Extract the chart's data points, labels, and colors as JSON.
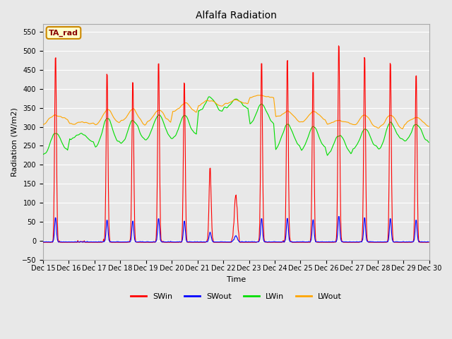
{
  "title": "Alfalfa Radiation",
  "xlabel": "Time",
  "ylabel": "Radiation (W/m2)",
  "ylim": [
    -50,
    570
  ],
  "yticks": [
    -50,
    0,
    50,
    100,
    150,
    200,
    250,
    300,
    350,
    400,
    450,
    500,
    550
  ],
  "series_colors": {
    "SWin": "#ff0000",
    "SWout": "#0000ff",
    "LWin": "#00dd00",
    "LWout": "#ffa500"
  },
  "legend_labels": [
    "SWin",
    "SWout",
    "LWin",
    "LWout"
  ],
  "annotation_label": "TA_rad",
  "annotation_color_bg": "#ffffcc",
  "annotation_color_border": "#cc8800",
  "annotation_color_text": "#880000",
  "bg_color": "#e8e8e8",
  "plot_bg_color": "#e8e8e8",
  "grid_color": "#ffffff",
  "start_day": 15,
  "end_day": 30,
  "pts_per_day": 48
}
